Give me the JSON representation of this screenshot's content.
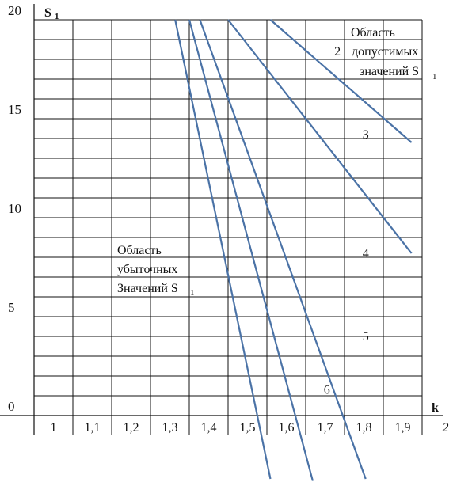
{
  "chart_data": {
    "type": "line",
    "ylabel": "S",
    "ylabel_sub": "1",
    "xlabel": "k",
    "xlim": [
      0.9,
      2.0
    ],
    "ylim": [
      0,
      20
    ],
    "grid": true,
    "y_ticks": [
      "0",
      "5",
      "10",
      "15",
      "20"
    ],
    "x_ticks": [
      "1",
      "1,1",
      "1,2",
      "1,3",
      "1,4",
      "1,5",
      "1,6",
      "1,7",
      "1,8",
      "1,9",
      "2"
    ],
    "series": [
      {
        "label": "2",
        "points": [
          [
            1.57,
            20
          ],
          [
            1.97,
            13.8
          ]
        ]
      },
      {
        "label": "3",
        "points": [
          [
            1.45,
            20
          ],
          [
            1.97,
            8.2
          ]
        ]
      },
      {
        "label": "4",
        "points": [
          [
            1.37,
            20
          ],
          [
            1.84,
            -3.2
          ]
        ]
      },
      {
        "label": "5",
        "points": [
          [
            1.34,
            20
          ],
          [
            1.69,
            -3.3
          ]
        ]
      },
      {
        "label": "6",
        "points": [
          [
            1.3,
            20
          ],
          [
            1.57,
            -3.2
          ]
        ]
      }
    ],
    "regions": {
      "feasible": {
        "lines": [
          "Область",
          "допустимых",
          "значений S"
        ],
        "sub": "1"
      },
      "loss": {
        "lines": [
          "Область",
          "убыточных",
          "Значений S"
        ],
        "sub": "1"
      }
    },
    "line_color": "#4a72a6",
    "grid_color": "#111111"
  }
}
